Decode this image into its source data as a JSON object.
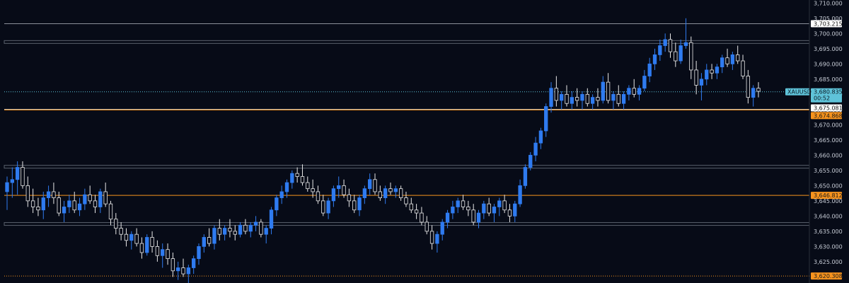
{
  "chart_data": {
    "type": "candlestick",
    "symbol": "XAUUSD",
    "countdown": "00:52",
    "ylim": [
      3618,
      3711
    ],
    "yticks": [
      "3,710.000",
      "3,705.000",
      "3,700.000",
      "3,695.000",
      "3,690.000",
      "3,685.000",
      "3,680.000",
      "3,675.000",
      "3,670.000",
      "3,665.000",
      "3,660.000",
      "3,655.000",
      "3,650.000",
      "3,645.000",
      "3,640.000",
      "3,635.000",
      "3,630.000",
      "3,625.000",
      "3,620.000"
    ],
    "levels": [
      {
        "price": 3703.215,
        "label": "3,703.215",
        "style": "solid",
        "color": "#8a8f99"
      },
      {
        "price": 3697.2,
        "label": "",
        "style": "band",
        "color": "#5a606c"
      },
      {
        "price": 3680.835,
        "label": "3,680.835",
        "style": "dotted",
        "color": "#5fc3d9"
      },
      {
        "price": 3675.081,
        "label": "3,675.081",
        "style": "solid",
        "color": "#c9c9c9"
      },
      {
        "price": 3674.868,
        "label": "3,674.868",
        "style": "solid",
        "color": "#f7931e"
      },
      {
        "price": 3656.2,
        "label": "",
        "style": "band",
        "color": "#5a606c"
      },
      {
        "price": 3646.812,
        "label": "3,646.812",
        "style": "solid",
        "color": "#f7931e"
      },
      {
        "price": 3637.4,
        "label": "",
        "style": "band",
        "color": "#5a606c"
      },
      {
        "price": 3620.308,
        "label": "3,620.308",
        "style": "dotted",
        "color": "#f7931e"
      }
    ],
    "marker": {
      "index": 223,
      "price": 3705.2,
      "color": "#2e7d32"
    },
    "ohlc": [
      [
        3648,
        3653,
        3642,
        3651
      ],
      [
        3651,
        3656,
        3646,
        3652
      ],
      [
        3652,
        3658,
        3647,
        3656
      ],
      [
        3656,
        3658,
        3649,
        3650
      ],
      [
        3650,
        3653,
        3643,
        3645
      ],
      [
        3645,
        3649,
        3641,
        3643
      ],
      [
        3643,
        3646,
        3640,
        3642
      ],
      [
        3642,
        3648,
        3639,
        3646
      ],
      [
        3646,
        3650,
        3643,
        3648
      ],
      [
        3648,
        3651,
        3644,
        3646
      ],
      [
        3646,
        3648,
        3640,
        3641
      ],
      [
        3641,
        3645,
        3638,
        3643
      ],
      [
        3643,
        3647,
        3641,
        3645
      ],
      [
        3645,
        3648,
        3641,
        3642
      ],
      [
        3642,
        3646,
        3640,
        3644
      ],
      [
        3644,
        3649,
        3642,
        3647
      ],
      [
        3647,
        3650,
        3644,
        3645
      ],
      [
        3645,
        3647,
        3641,
        3643
      ],
      [
        3643,
        3649,
        3641,
        3648
      ],
      [
        3648,
        3651,
        3643,
        3644
      ],
      [
        3644,
        3645,
        3637,
        3639
      ],
      [
        3639,
        3641,
        3634,
        3636
      ],
      [
        3636,
        3638,
        3632,
        3634
      ],
      [
        3634,
        3636,
        3630,
        3632
      ],
      [
        3632,
        3635,
        3629,
        3634
      ],
      [
        3634,
        3636,
        3630,
        3631
      ],
      [
        3631,
        3633,
        3626,
        3628
      ],
      [
        3628,
        3634,
        3627,
        3633
      ],
      [
        3633,
        3635,
        3628,
        3630
      ],
      [
        3630,
        3632,
        3625,
        3627
      ],
      [
        3627,
        3631,
        3623,
        3629
      ],
      [
        3629,
        3631,
        3624,
        3626
      ],
      [
        3626,
        3628,
        3620,
        3622
      ],
      [
        3622,
        3625,
        3619,
        3623
      ],
      [
        3623,
        3626,
        3620,
        3621
      ],
      [
        3621,
        3624,
        3618,
        3623
      ],
      [
        3623,
        3627,
        3621,
        3626
      ],
      [
        3626,
        3631,
        3624,
        3630
      ],
      [
        3630,
        3634,
        3628,
        3633
      ],
      [
        3633,
        3636,
        3630,
        3631
      ],
      [
        3631,
        3637,
        3629,
        3636
      ],
      [
        3636,
        3639,
        3632,
        3634
      ],
      [
        3634,
        3637,
        3632,
        3636
      ],
      [
        3636,
        3639,
        3633,
        3635
      ],
      [
        3635,
        3637,
        3632,
        3634
      ],
      [
        3634,
        3638,
        3633,
        3637
      ],
      [
        3637,
        3639,
        3634,
        3635
      ],
      [
        3635,
        3638,
        3633,
        3637
      ],
      [
        3637,
        3640,
        3635,
        3638
      ],
      [
        3638,
        3639,
        3633,
        3634
      ],
      [
        3634,
        3637,
        3631,
        3636
      ],
      [
        3636,
        3643,
        3634,
        3642
      ],
      [
        3642,
        3647,
        3640,
        3646
      ],
      [
        3646,
        3650,
        3644,
        3648
      ],
      [
        3648,
        3652,
        3646,
        3651
      ],
      [
        3651,
        3655,
        3649,
        3654
      ],
      [
        3654,
        3656,
        3651,
        3653
      ],
      [
        3653,
        3657,
        3650,
        3651
      ],
      [
        3651,
        3653,
        3648,
        3649
      ],
      [
        3649,
        3652,
        3646,
        3648
      ],
      [
        3648,
        3650,
        3644,
        3645
      ],
      [
        3645,
        3647,
        3640,
        3641
      ],
      [
        3641,
        3646,
        3639,
        3645
      ],
      [
        3645,
        3650,
        3643,
        3649
      ],
      [
        3649,
        3653,
        3646,
        3650
      ],
      [
        3650,
        3652,
        3646,
        3647
      ],
      [
        3647,
        3649,
        3643,
        3645
      ],
      [
        3645,
        3647,
        3641,
        3642
      ],
      [
        3642,
        3647,
        3640,
        3646
      ],
      [
        3646,
        3650,
        3644,
        3649
      ],
      [
        3649,
        3654,
        3647,
        3652
      ],
      [
        3652,
        3654,
        3647,
        3648
      ],
      [
        3648,
        3650,
        3645,
        3646
      ],
      [
        3646,
        3650,
        3644,
        3649
      ],
      [
        3649,
        3651,
        3647,
        3648
      ],
      [
        3648,
        3650,
        3646,
        3649
      ],
      [
        3649,
        3650,
        3645,
        3646
      ],
      [
        3646,
        3648,
        3643,
        3644
      ],
      [
        3644,
        3646,
        3641,
        3642
      ],
      [
        3642,
        3644,
        3639,
        3641
      ],
      [
        3641,
        3643,
        3637,
        3638
      ],
      [
        3638,
        3640,
        3634,
        3635
      ],
      [
        3635,
        3637,
        3629,
        3631
      ],
      [
        3631,
        3635,
        3628,
        3634
      ],
      [
        3634,
        3639,
        3632,
        3638
      ],
      [
        3638,
        3642,
        3636,
        3641
      ],
      [
        3641,
        3645,
        3639,
        3643
      ],
      [
        3643,
        3646,
        3641,
        3645
      ],
      [
        3645,
        3647,
        3642,
        3643
      ],
      [
        3643,
        3645,
        3640,
        3642
      ],
      [
        3642,
        3644,
        3637,
        3638
      ],
      [
        3638,
        3642,
        3636,
        3641
      ],
      [
        3641,
        3645,
        3639,
        3644
      ],
      [
        3644,
        3646,
        3640,
        3641
      ],
      [
        3641,
        3644,
        3638,
        3643
      ],
      [
        3643,
        3646,
        3640,
        3645
      ],
      [
        3645,
        3647,
        3641,
        3642
      ],
      [
        3642,
        3644,
        3638,
        3640
      ],
      [
        3640,
        3645,
        3638,
        3644
      ],
      [
        3644,
        3652,
        3643,
        3650
      ],
      [
        3650,
        3657,
        3649,
        3656
      ],
      [
        3656,
        3661,
        3655,
        3660
      ],
      [
        3660,
        3666,
        3658,
        3664
      ],
      [
        3664,
        3669,
        3662,
        3668
      ],
      [
        3668,
        3677,
        3666,
        3676
      ],
      [
        3676,
        3684,
        3674,
        3682
      ],
      [
        3682,
        3686,
        3676,
        3678
      ],
      [
        3678,
        3681,
        3675,
        3680
      ],
      [
        3680,
        3683,
        3676,
        3677
      ],
      [
        3677,
        3681,
        3675,
        3679
      ],
      [
        3679,
        3682,
        3676,
        3678
      ],
      [
        3678,
        3681,
        3675,
        3680
      ],
      [
        3680,
        3682,
        3676,
        3677
      ],
      [
        3677,
        3680,
        3675,
        3679
      ],
      [
        3679,
        3682,
        3676,
        3678
      ],
      [
        3678,
        3686,
        3677,
        3684
      ],
      [
        3684,
        3687,
        3677,
        3678
      ],
      [
        3678,
        3681,
        3675,
        3680
      ],
      [
        3680,
        3683,
        3676,
        3677
      ],
      [
        3677,
        3681,
        3675,
        3680
      ],
      [
        3680,
        3683,
        3678,
        3682
      ],
      [
        3682,
        3685,
        3679,
        3680
      ],
      [
        3680,
        3683,
        3678,
        3682
      ],
      [
        3682,
        3688,
        3681,
        3686
      ],
      [
        3686,
        3692,
        3684,
        3690
      ],
      [
        3690,
        3695,
        3688,
        3693
      ],
      [
        3693,
        3698,
        3691,
        3696
      ],
      [
        3696,
        3700,
        3694,
        3698
      ],
      [
        3698,
        3700,
        3692,
        3694
      ],
      [
        3694,
        3697,
        3689,
        3691
      ],
      [
        3691,
        3698,
        3690,
        3696
      ],
      [
        3696,
        3705,
        3695,
        3697
      ],
      [
        3697,
        3699,
        3685,
        3688
      ],
      [
        3688,
        3691,
        3680,
        3683
      ],
      [
        3683,
        3687,
        3678,
        3685
      ],
      [
        3685,
        3690,
        3683,
        3688
      ],
      [
        3688,
        3690,
        3685,
        3687
      ],
      [
        3687,
        3690,
        3685,
        3689
      ],
      [
        3689,
        3693,
        3687,
        3692
      ],
      [
        3692,
        3695,
        3689,
        3690
      ],
      [
        3690,
        3694,
        3688,
        3693
      ],
      [
        3693,
        3696,
        3690,
        3691
      ],
      [
        3691,
        3693,
        3685,
        3686
      ],
      [
        3686,
        3688,
        3677,
        3679
      ],
      [
        3679,
        3683,
        3676,
        3682
      ],
      [
        3682,
        3684,
        3679,
        3681
      ]
    ]
  }
}
